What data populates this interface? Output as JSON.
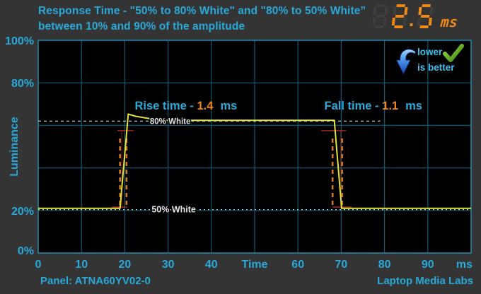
{
  "header": {
    "title_line1": "Response Time - \"50% to 80% White\" and \"80% to 50% White”",
    "title_line2": "between 10% and 90% of the amplitude"
  },
  "readout": {
    "ghost_digit": "8",
    "value": "2.5",
    "digits": [
      "2",
      "5"
    ],
    "unit": "ms"
  },
  "badge": {
    "line1": "lower",
    "line2": "is better",
    "arrow_icon": "down-arrow",
    "check_icon": "checkmark"
  },
  "footer": {
    "panel": "Panel: ATNA60YV02-0",
    "brand": "Laptop Media Labs"
  },
  "colors": {
    "background": "#343434",
    "plot_bg": "#000000",
    "grid": "#0e5a74",
    "border": "#2085a8",
    "text_cyan": "#29a9d9",
    "badge_cyan": "#3cc0ee",
    "signal_yellow": "#e4e43c",
    "value_orange": "#f0861c",
    "seg_orange": "#ef8816",
    "seg_ghost": "#3e3e3e",
    "marker_orange": "#d4791c",
    "marker_red": "#a02424",
    "ref_white": "#c8c8c8",
    "ref_label_white": "#e6e6e6"
  },
  "chart_data": {
    "type": "line",
    "title": "Response Time - \"50% to 80% White\" and \"80% to 50% White” between 10% and 90% of the amplitude",
    "xlabel": "Time",
    "x_unit": "ms",
    "ylabel": "Luminance",
    "xlim": [
      0,
      100
    ],
    "ylim": [
      0,
      100
    ],
    "grid": true,
    "legend": "none",
    "x_gridlines": [
      10,
      20,
      30,
      40,
      50,
      60,
      70,
      80,
      90
    ],
    "y_gridlines": [
      20,
      40,
      60,
      80
    ],
    "x_ticks": [
      {
        "v": 0,
        "label": "0"
      },
      {
        "v": 10,
        "label": "10"
      },
      {
        "v": 20,
        "label": "20"
      },
      {
        "v": 30,
        "label": "30"
      },
      {
        "v": 40,
        "label": "40"
      },
      {
        "v": 50,
        "label": "Time"
      },
      {
        "v": 60,
        "label": "60"
      },
      {
        "v": 70,
        "label": "70"
      },
      {
        "v": 80,
        "label": "80"
      },
      {
        "v": 90,
        "label": "90"
      },
      {
        "v": 100,
        "label": "ms"
      }
    ],
    "y_ticks": [
      {
        "v": 100,
        "label": "100%"
      },
      {
        "v": 80,
        "label": "80%"
      },
      {
        "v": 20,
        "label": "20%"
      },
      {
        "v": 0,
        "label": "0%"
      }
    ],
    "series": [
      {
        "name": "luminance-response",
        "color": "#e4e43c",
        "points": [
          [
            0,
            21
          ],
          [
            18.9,
            21
          ],
          [
            20.8,
            65.3
          ],
          [
            22.5,
            64.3
          ],
          [
            28,
            62.4
          ],
          [
            68.4,
            62.4
          ],
          [
            70.1,
            21
          ],
          [
            100,
            21
          ]
        ]
      }
    ],
    "reference_lines": [
      {
        "name": "80-percent-white",
        "label": "80% White",
        "level": 62,
        "t_start": 0,
        "t_end": 79,
        "dash": "4,4",
        "label_t": 25.8,
        "label_size": 11.5
      },
      {
        "name": "50-percent-white",
        "label": "50% White",
        "level": 20.4,
        "t_start": 0,
        "t_end": 100,
        "dash": "2,4",
        "label_t": 26.2,
        "label_size": 12.5
      }
    ],
    "annotations": [
      {
        "name": "rise-time",
        "label": "Rise time - ",
        "value": "1.4",
        "unit": "ms",
        "t": 22.3,
        "L": 67.5
      },
      {
        "name": "fall-time",
        "label": "Fall time - ",
        "value": "1.1",
        "unit": "ms",
        "t": 66.1,
        "L": 67.5
      }
    ],
    "transitions": [
      {
        "name": "rise",
        "window": [
          18.9,
          20.4
        ],
        "window_span": [
          22.6,
          54.2
        ],
        "cross_high": {
          "t": [
            18.3,
            22.0
          ],
          "L": 57.5
        },
        "cross_low": {
          "t": [
            17.0,
            20.6
          ],
          "L": 21.6
        },
        "crosshair_t": 19.3
      },
      {
        "name": "fall",
        "window": [
          68.0,
          70.2
        ],
        "window_span": [
          22.6,
          54.2
        ],
        "cross_high": {
          "t": [
            65.4,
            71.1
          ],
          "L": 57.5
        },
        "cross_low": {
          "t": [
            68.0,
            72.4
          ],
          "L": 21.6
        },
        "crosshair_t": 69.9
      }
    ],
    "measurements": {
      "rise_time_ms": 1.4,
      "fall_time_ms": 1.1,
      "total_response_ms": 2.5
    }
  }
}
